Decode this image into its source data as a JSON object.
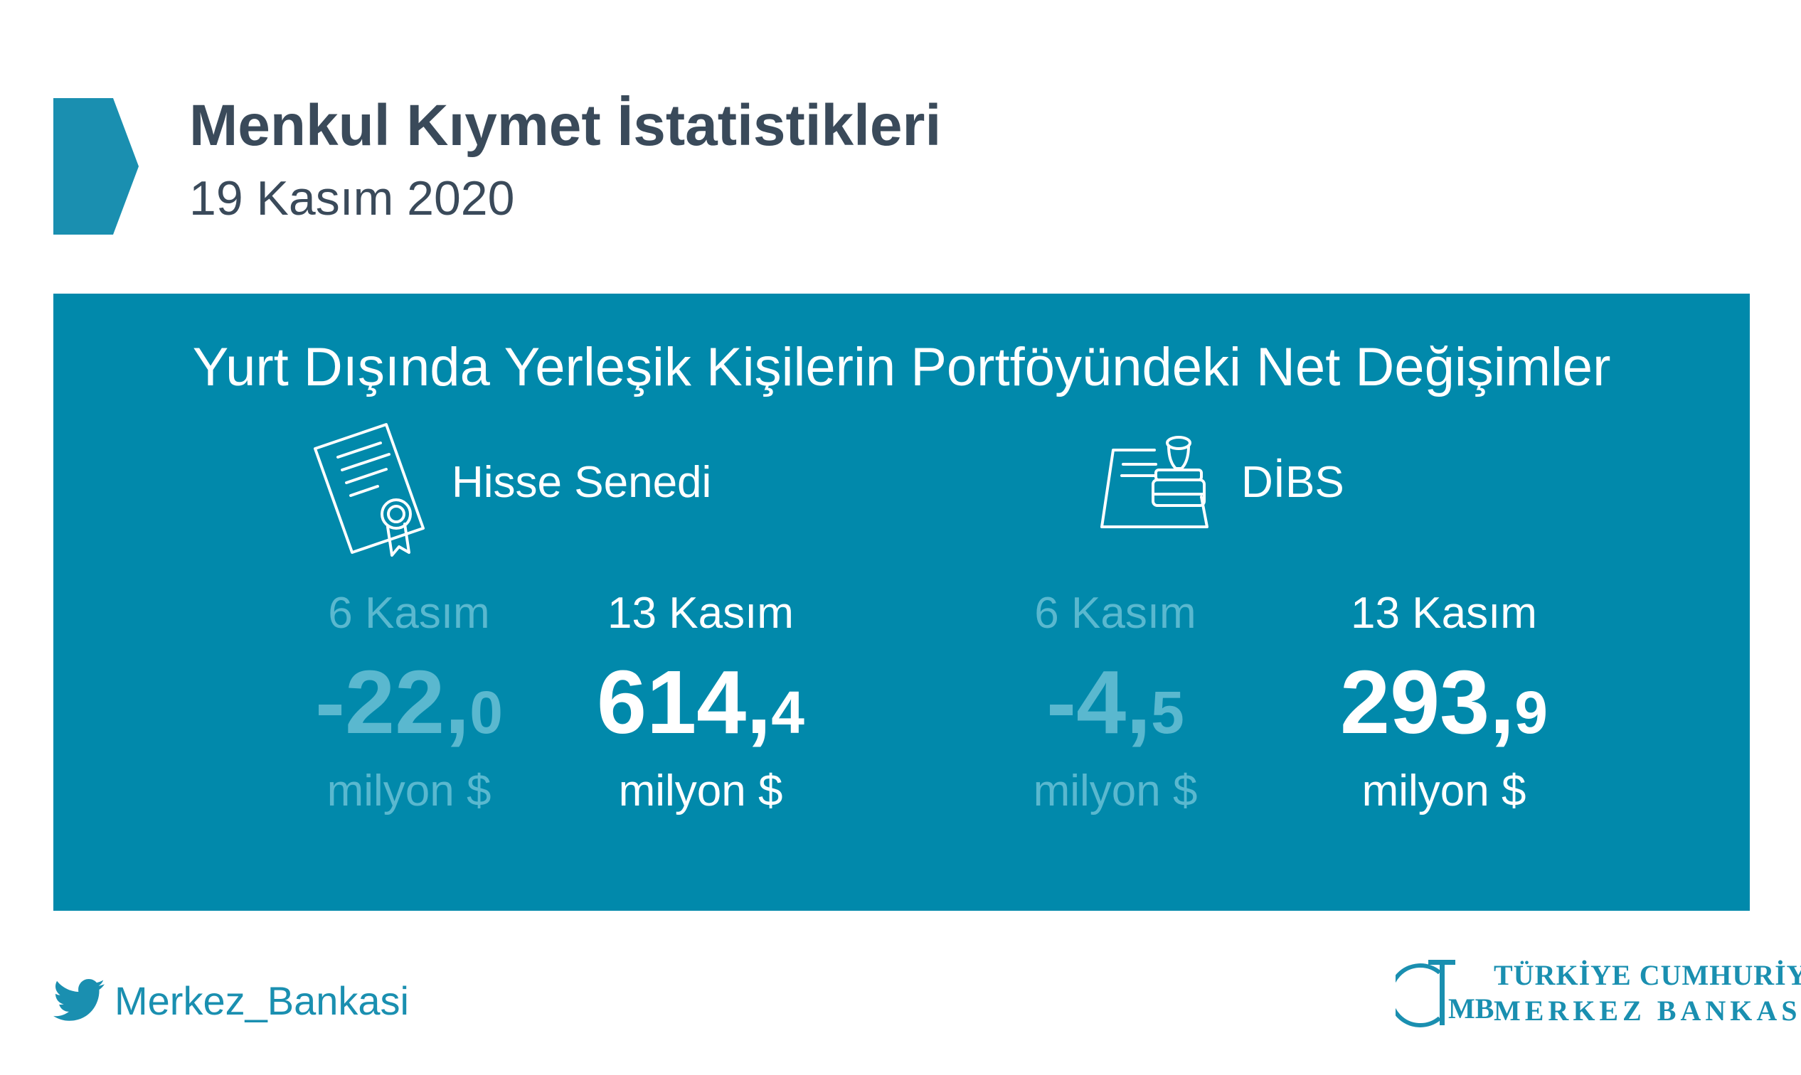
{
  "header": {
    "title": "Menkul Kıymet İstatistikleri",
    "date": "19 Kasım 2020"
  },
  "panel": {
    "title": "Yurt Dışında Yerleşik Kişilerin Portföyündeki Net Değişimler",
    "sections": [
      {
        "label": "Hisse Senedi",
        "icon": "certificate-icon",
        "previous": {
          "period": "6 Kasım",
          "integer": "-22,",
          "decimal": "0",
          "unit": "milyon $"
        },
        "current": {
          "period": "13 Kasım",
          "integer": "614,",
          "decimal": "4",
          "unit": "milyon $"
        }
      },
      {
        "label": "DİBS",
        "icon": "stamp-icon",
        "previous": {
          "period": "6 Kasım",
          "integer": "-4,",
          "decimal": "5",
          "unit": "milyon $"
        },
        "current": {
          "period": "13 Kasım",
          "integer": "293,",
          "decimal": "9",
          "unit": "milyon $"
        }
      }
    ]
  },
  "footer": {
    "twitter_handle": "Merkez_Bankasi",
    "twitter_icon": "twitter-bird-icon",
    "logo_line1": "TÜRKİYE CUMHURİYET",
    "logo_line2": "MERKEZ BANKASI",
    "logo_monogram": "TCMB"
  },
  "colors": {
    "brand": "#1a8fb0",
    "panel": "#0189ab",
    "muted": "#5ab8cf",
    "heading": "#3a4a5a"
  }
}
